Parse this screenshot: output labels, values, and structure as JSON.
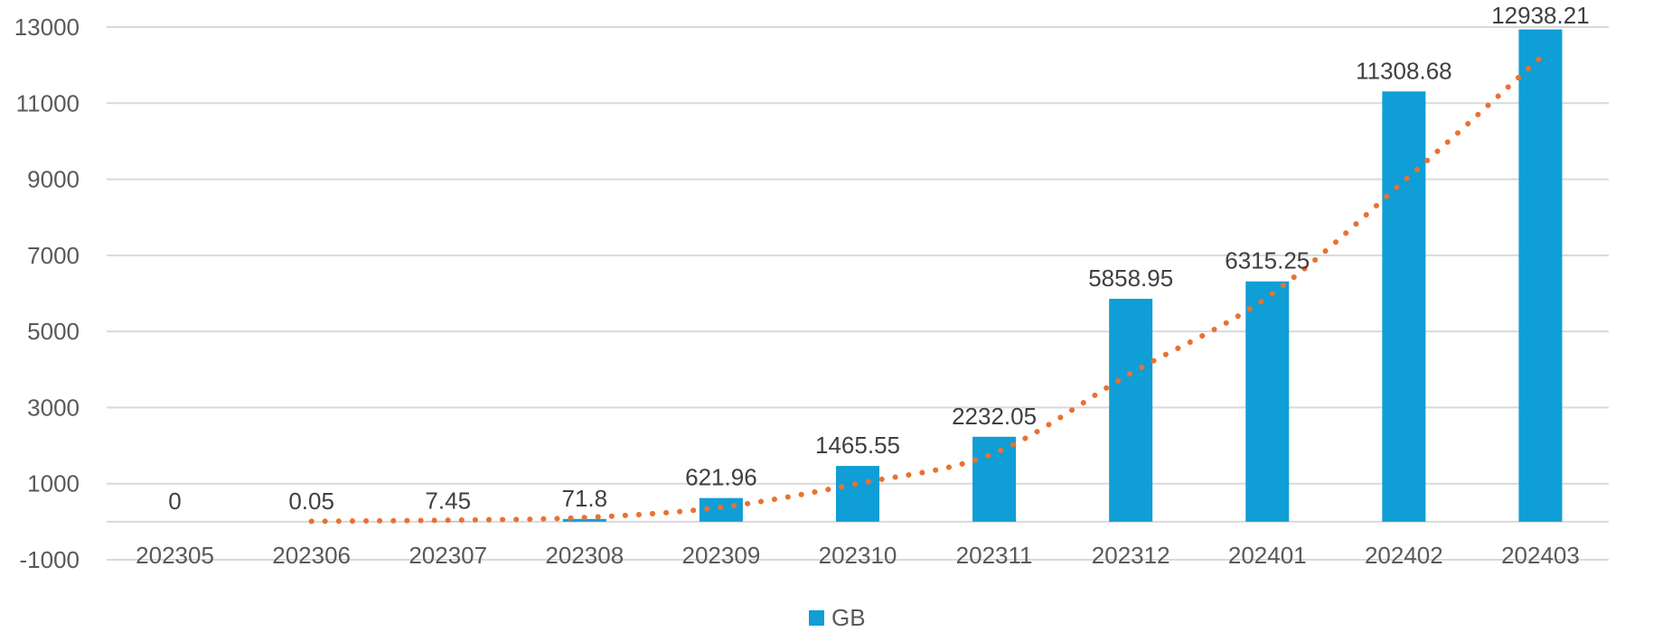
{
  "chart_data": {
    "type": "bar",
    "title": "",
    "xlabel": "",
    "ylabel": "",
    "categories": [
      "202305",
      "202306",
      "202307",
      "202308",
      "202309",
      "202310",
      "202311",
      "202312",
      "202401",
      "202402",
      "202403"
    ],
    "series": [
      {
        "name": "GB",
        "values": [
          0,
          0.05,
          7.45,
          71.8,
          621.96,
          1465.55,
          2232.05,
          5858.95,
          6315.25,
          11308.68,
          12938.21
        ],
        "labels": [
          "0",
          "0.05",
          "7.45",
          "71.8",
          "621.96",
          "1465.55",
          "2232.05",
          "5858.95",
          "6315.25",
          "11308.68",
          "12938.21"
        ],
        "color": "#0f9ed5"
      }
    ],
    "trendline": {
      "kind": "polynomial",
      "style": "dotted",
      "color": "#e97132",
      "start_category": "202306",
      "values": [
        0,
        10,
        40,
        110,
        380,
        1000,
        1800,
        3900,
        5900,
        8950,
        12200
      ]
    },
    "ylim": [
      -1000,
      13000
    ],
    "yticks": [
      "-1000",
      "1000",
      "3000",
      "5000",
      "7000",
      "9000",
      "11000",
      "13000"
    ],
    "grid": true,
    "legend_position": "bottom"
  }
}
